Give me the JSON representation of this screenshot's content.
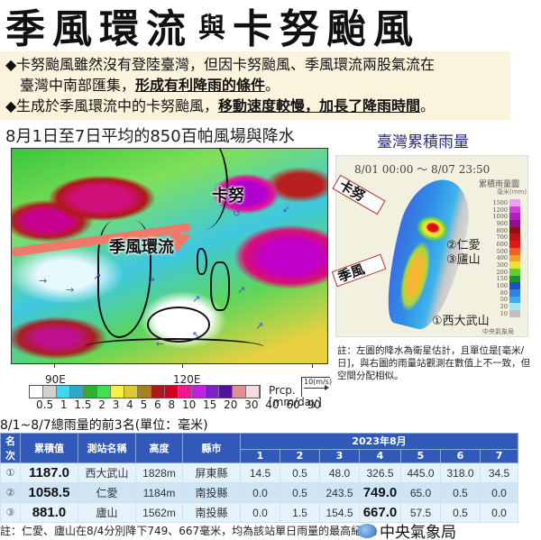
{
  "title": {
    "part1": "季風環流",
    "connector": "與",
    "part2": "卡努颱風"
  },
  "bullets": {
    "b1_line1": "卡努颱風雖然沒有登陸臺灣，但因卡努颱風、季風環流兩股氣流在",
    "b1_line2_plain": "臺灣中南部匯集，",
    "b1_line2_emph": "形成有利降雨的條件",
    "b1_line2_end": "。",
    "b2_plain": "生成於季風環流中的卡努颱風，",
    "b2_emph": "移動速度較慢，加長了降雨時間",
    "b2_end": "。",
    "marker": "◆"
  },
  "left_map": {
    "title": "8月1日至7日平均的850百帕風場與降水",
    "label_typhoon": "卡努",
    "label_monsoon": "季風環流",
    "lon_labels": [
      "90E",
      "120E"
    ],
    "colorbar": {
      "colors": [
        "#ffffff",
        "#d0d0d0",
        "#40d8f0",
        "#30a8c8",
        "#30b030",
        "#40e050",
        "#f8f040",
        "#e0c830",
        "#a88020",
        "#b01818",
        "#d00020",
        "#f01890",
        "#c020e0",
        "#8020c8",
        "#5010a0",
        "#e09090",
        "#f4dcdc"
      ],
      "tick_labels": [
        "0.5",
        "1",
        "1.5",
        "2",
        "3",
        "4",
        "5",
        "6",
        "8",
        "10",
        "15",
        "20",
        "30",
        "40",
        "60",
        "90"
      ],
      "unit_line1": "Prcp.",
      "unit_line2": "[mm/day]",
      "vector_ref": "10(m/s)"
    }
  },
  "right_map": {
    "title": "臺灣累積雨量",
    "time_range": "8/01 00:00 ～ 8/07 23:50",
    "legend_title": "累積雨量圖",
    "legend_unit": "毫米(mm)",
    "legend_scale": [
      {
        "label": "1500",
        "color": "#f0a0f0"
      },
      {
        "label": "1200",
        "color": "#d040d8"
      },
      {
        "label": "1000",
        "color": "#b020c0"
      },
      {
        "label": "900",
        "color": "#901090"
      },
      {
        "label": "800",
        "color": "#901018"
      },
      {
        "label": "700",
        "color": "#c01018"
      },
      {
        "label": "600",
        "color": "#e01818"
      },
      {
        "label": "500",
        "color": "#f06020"
      },
      {
        "label": "400",
        "color": "#f0a030"
      },
      {
        "label": "300",
        "color": "#f0e030"
      },
      {
        "label": "200",
        "color": "#60d030"
      },
      {
        "label": "150",
        "color": "#209030"
      },
      {
        "label": "100",
        "color": "#2050c0"
      },
      {
        "label": "80",
        "color": "#3080e0"
      },
      {
        "label": "50",
        "color": "#40a8f0"
      },
      {
        "label": "20",
        "color": "#a0e8f8"
      },
      {
        "label": "10",
        "color": "#c0c0c0"
      }
    ],
    "arrow_typhoon": "卡努",
    "arrow_monsoon": "季風",
    "station_2": "②仁愛",
    "station_3": "③廬山",
    "station_1": "①西大武山",
    "agency_small": "中央氣象局"
  },
  "note_right": "註：左圖的降水為衛星估計，且單位是[毫米/日]，與右圖的雨量站觀測在數值上不一致，但空間分配相似。",
  "table": {
    "title": "8/1~8/7總雨量的前3名(單位：毫米)",
    "headers": [
      "名次",
      "累積值",
      "測站名稱",
      "高度",
      "縣市"
    ],
    "month_header": "2023年8月",
    "days": [
      "1",
      "2",
      "3",
      "4",
      "5",
      "6",
      "7"
    ],
    "rows": [
      {
        "rank": "①",
        "total": "1187.0",
        "station": "西大武山",
        "height": "1828m",
        "county": "屏東縣",
        "daily": [
          "14.5",
          "0.5",
          "48.0",
          "326.5",
          "445.0",
          "318.0",
          "34.5"
        ]
      },
      {
        "rank": "②",
        "total": "1058.5",
        "station": "仁愛",
        "height": "1184m",
        "county": "南投縣",
        "daily": [
          "0.0",
          "0.5",
          "243.5",
          "749.0",
          "65.0",
          "0.5",
          "0.0"
        ]
      },
      {
        "rank": "③",
        "total": "881.0",
        "station": "廬山",
        "height": "1562m",
        "county": "南投縣",
        "daily": [
          "0.0",
          "1.5",
          "154.5",
          "667.0",
          "57.5",
          "0.5",
          "0.0"
        ]
      }
    ]
  },
  "footer": {
    "note": "註：仁愛、廬山在8/4分別降下749、667毫米，均為該站單日雨量的最高紀錄。",
    "agency": "中央氣象局"
  }
}
